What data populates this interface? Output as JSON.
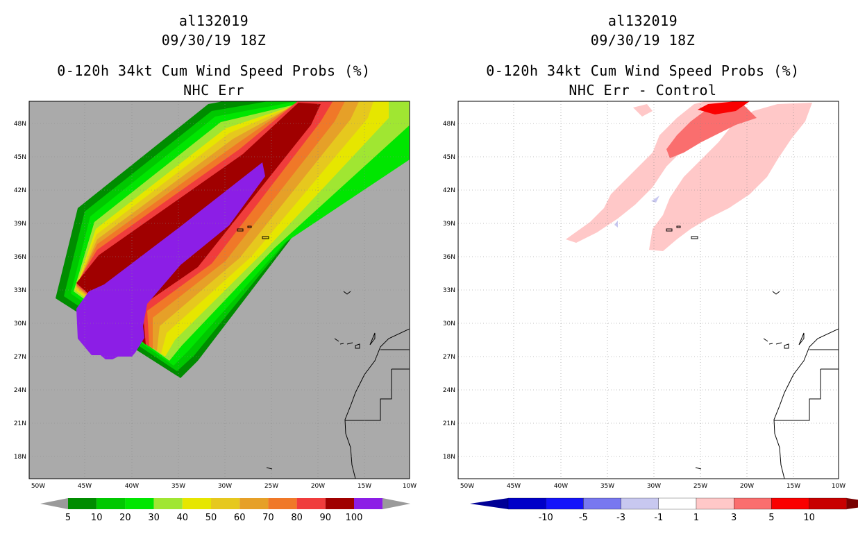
{
  "left_panel": {
    "storm_id": "al132019",
    "datetime": "09/30/19 18Z",
    "title": "0-120h 34kt Cum Wind Speed Probs (%)",
    "subtitle": "NHC Err",
    "colorbar": {
      "labels": [
        "5",
        "10",
        "20",
        "30",
        "40",
        "50",
        "60",
        "70",
        "80",
        "90",
        "100"
      ],
      "colors": [
        "#008c00",
        "#00c800",
        "#00e600",
        "#a0e632",
        "#e6e600",
        "#e6c81e",
        "#e6a028",
        "#f07828",
        "#f03c3c",
        "#a00000",
        "#8c1ee6"
      ],
      "below_color": "#9a9a9a",
      "above_color": "#9a9a9a"
    }
  },
  "right_panel": {
    "storm_id": "al132019",
    "datetime": "09/30/19 18Z",
    "title": "0-120h 34kt Cum Wind Speed Probs (%)",
    "subtitle": "NHC Err - Control",
    "colorbar": {
      "labels": [
        "-10",
        "-5",
        "-3",
        "-1",
        "1",
        "3",
        "5",
        "10"
      ],
      "colors": [
        "#0000c8",
        "#1414fa",
        "#7878f0",
        "#c8c8f0",
        "#ffffff",
        "#ffc8c8",
        "#fa6e6e",
        "#fa0000",
        "#c80000"
      ],
      "below_color": "#000096",
      "above_color": "#780000"
    }
  },
  "map": {
    "lat_labels": [
      "48N",
      "45N",
      "42N",
      "39N",
      "36N",
      "33N",
      "30N",
      "27N",
      "24N",
      "21N",
      "18N"
    ],
    "lon_labels": [
      "50W",
      "45W",
      "40W",
      "35W",
      "30W",
      "25W",
      "20W",
      "15W",
      "10W"
    ]
  },
  "colors": {
    "land_gray": "#aaaaaa",
    "grid": "#888888"
  }
}
